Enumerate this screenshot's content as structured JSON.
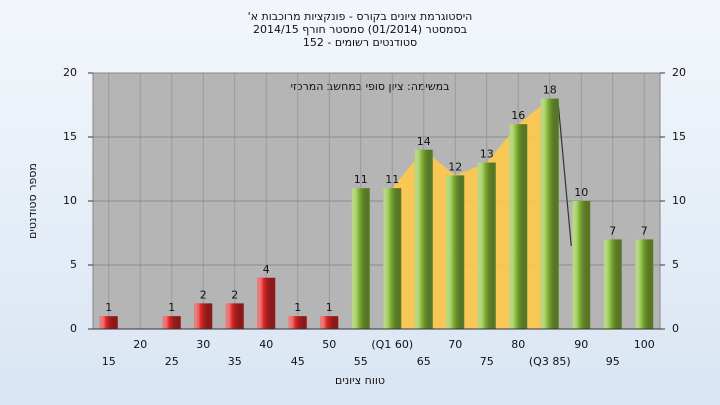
{
  "chart_data": {
    "type": "bar",
    "title": [
      "היסטוגרמת ציונים בקורס - פונקציות מרוכבות א'",
      "בסמסטר (01/2014) סמסטר חורף 2014/15",
      "סטודנטים רשומים - 152"
    ],
    "annotation": "במשימה: ציון סופי במחשב המרכזי",
    "x_label": "טווח ציונים",
    "y_label": "מספר סטודנטים",
    "categories": [
      "15",
      "20",
      "25",
      "30",
      "35",
      "40",
      "45",
      "50",
      "55",
      "(Q1 60)",
      "65",
      "70",
      "75",
      "80",
      "(Q3 85)",
      "90",
      "95",
      "100"
    ],
    "values": [
      1,
      0,
      1,
      2,
      2,
      4,
      1,
      1,
      11,
      11,
      14,
      12,
      13,
      16,
      18,
      10,
      7,
      7
    ],
    "bar_colors": [
      "#e02828",
      "#e02828",
      "#e02828",
      "#e02828",
      "#e02828",
      "#e02828",
      "#e02828",
      "#e02828",
      "#8cbf3c",
      "#8cbf3c",
      "#8cbf3c",
      "#8cbf3c",
      "#8cbf3c",
      "#8cbf3c",
      "#8cbf3c",
      "#8cbf3c",
      "#8cbf3c",
      "#8cbf3c"
    ],
    "quartile_band_color": "#ffc94a",
    "ylim": [
      0,
      20
    ],
    "yticks": [
      0,
      5,
      10,
      15,
      20
    ],
    "y2lim": [
      0,
      20
    ],
    "y2ticks": [
      0,
      5,
      10,
      15,
      20
    ],
    "grid": true
  }
}
